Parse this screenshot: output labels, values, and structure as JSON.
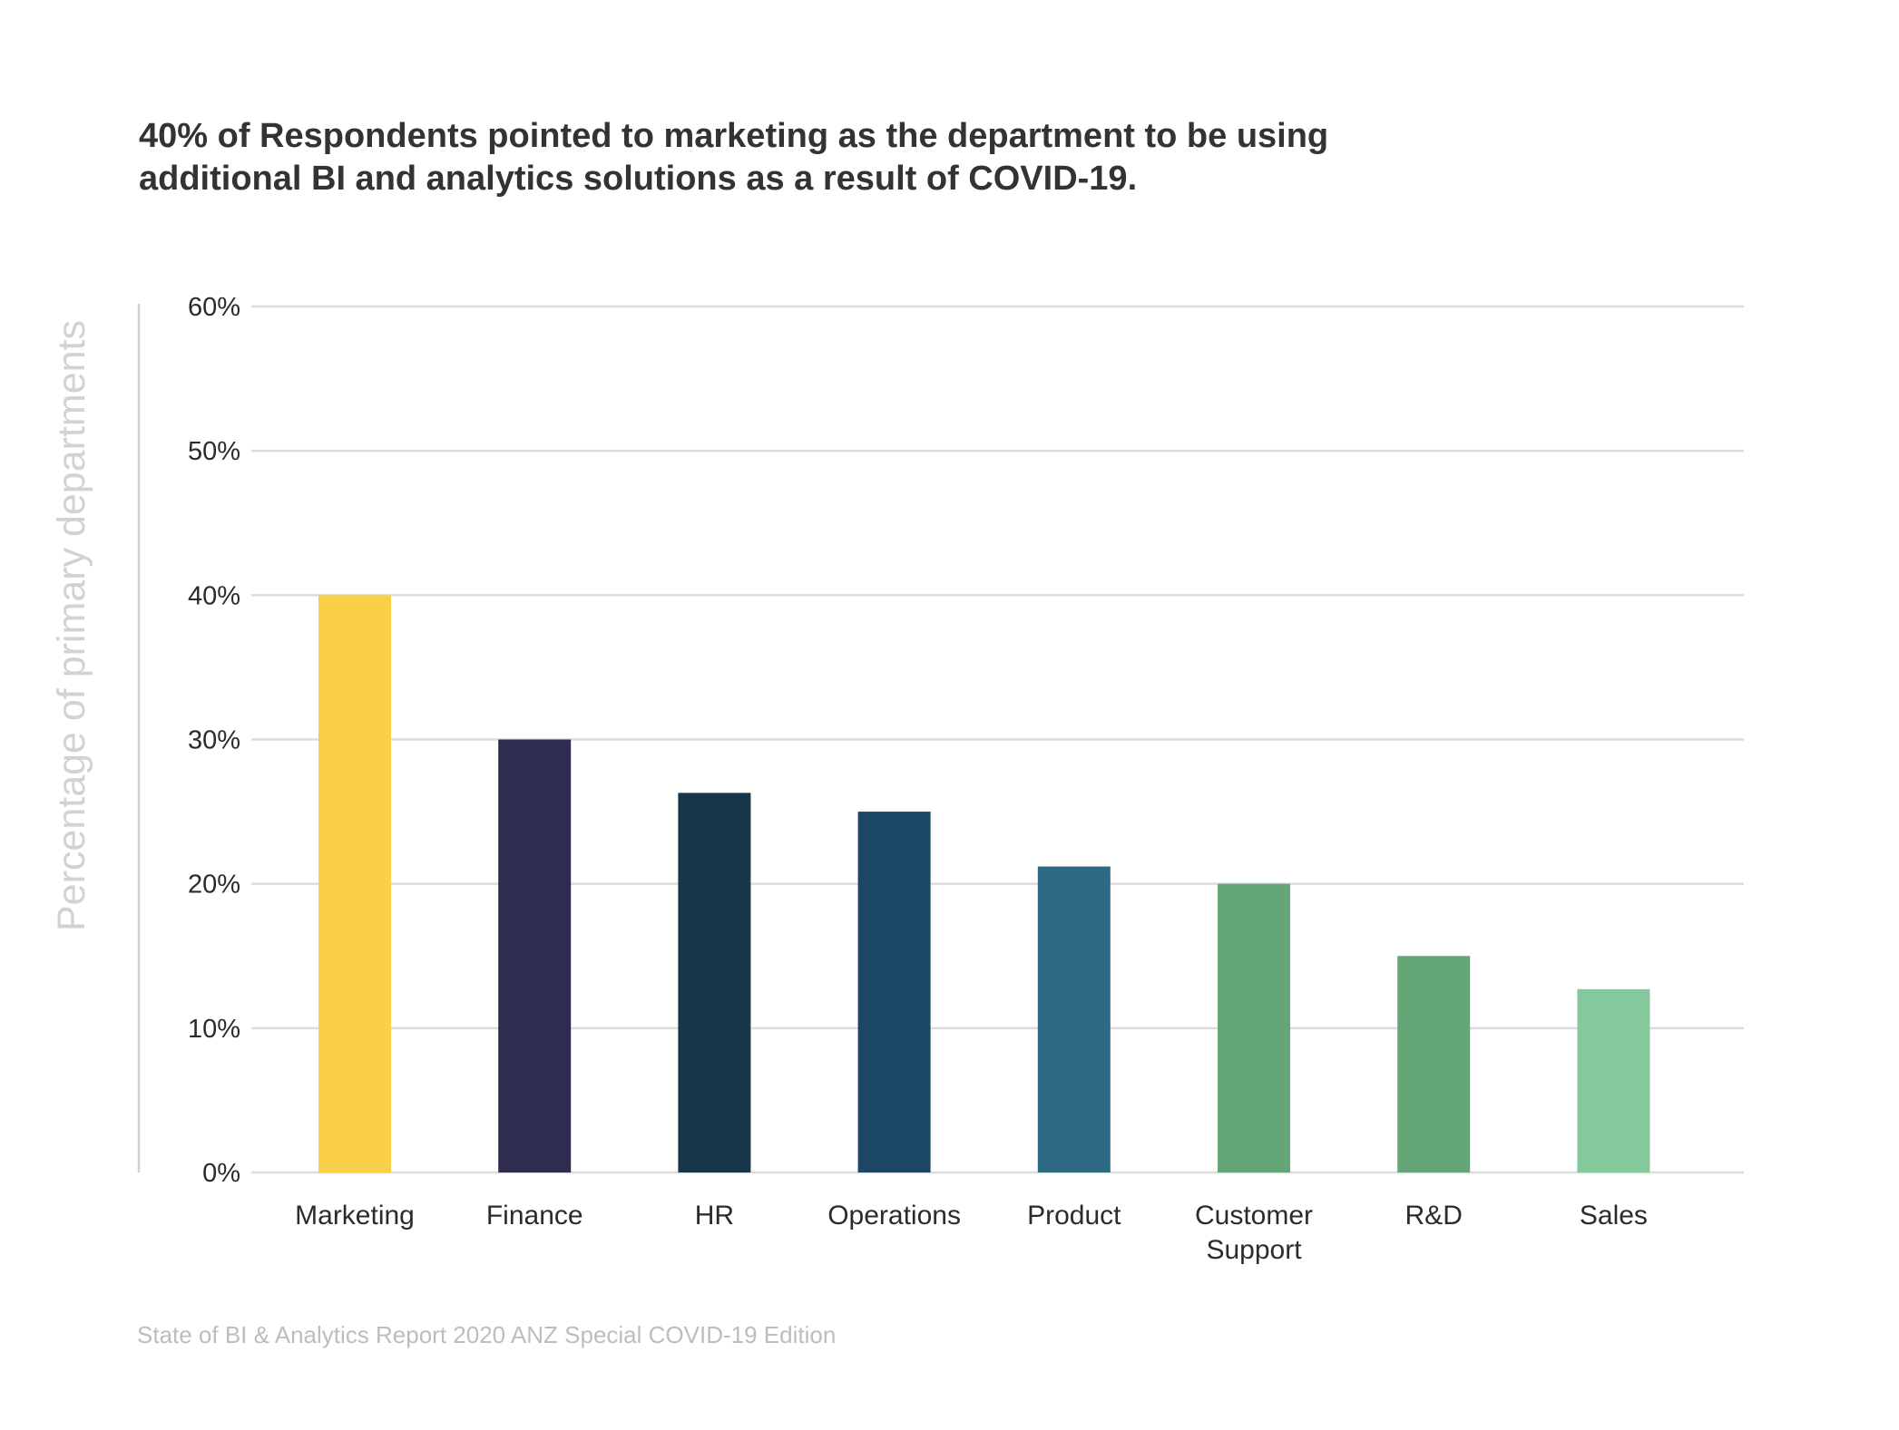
{
  "chart_data": {
    "type": "bar",
    "title": "40% of Respondents pointed to marketing as the department to be using additional BI and analytics solutions as a result of COVID-19.",
    "title_lines": [
      "40% of Respondents pointed to marketing as the department to be using",
      "additional BI and analytics solutions as a result of COVID-19."
    ],
    "xlabel": "",
    "ylabel": "Percentage of primary departments",
    "ylim": [
      0,
      60
    ],
    "yticks": [
      0,
      10,
      20,
      30,
      40,
      50,
      60
    ],
    "ytick_labels": [
      "0%",
      "10%",
      "20%",
      "30%",
      "40%",
      "50%",
      "60%"
    ],
    "grid": true,
    "categories": [
      "Marketing",
      "Finance",
      "HR",
      "Operations",
      "Product",
      "Customer Support",
      "R&D",
      "Sales"
    ],
    "category_label_lines": [
      [
        "Marketing"
      ],
      [
        "Finance"
      ],
      [
        "HR"
      ],
      [
        "Operations"
      ],
      [
        "Product"
      ],
      [
        "Customer",
        "Support"
      ],
      [
        "R&D"
      ],
      [
        "Sales"
      ]
    ],
    "values": [
      40,
      30,
      26.3,
      25,
      21.2,
      20,
      15,
      12.7
    ],
    "colors": [
      "#fad048",
      "#2e2c4f",
      "#173748",
      "#1d4865",
      "#2e6a83",
      "#64a678",
      "#64a678",
      "#84c99c"
    ],
    "source": "State of BI & Analytics Report 2020 ANZ Special COVID-19 Edition"
  }
}
